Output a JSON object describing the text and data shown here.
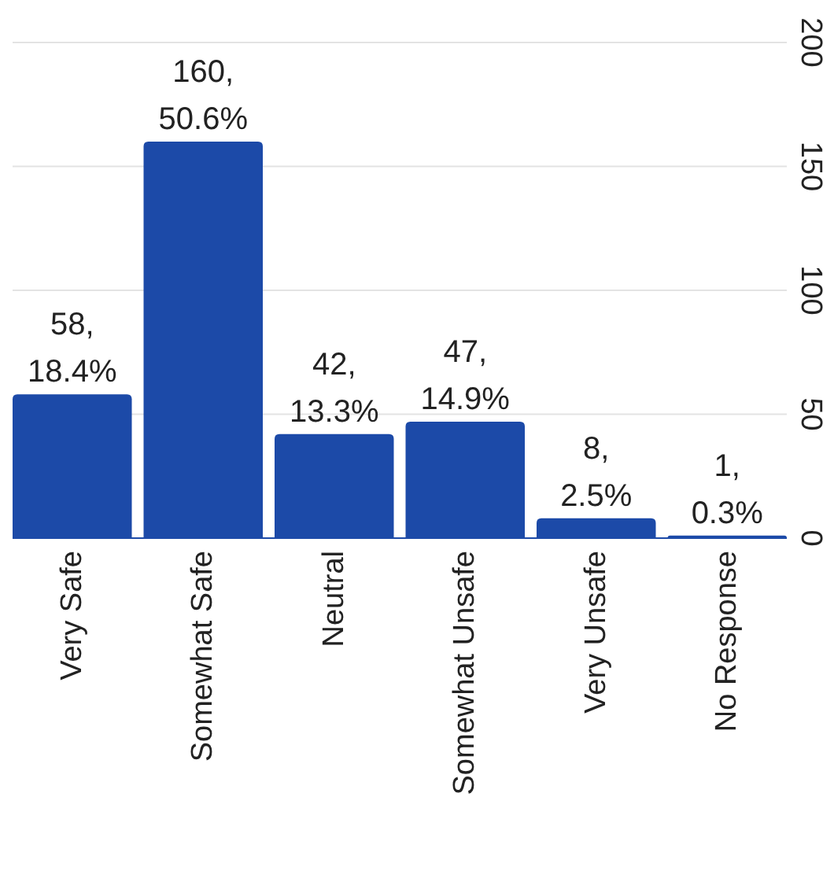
{
  "chart_data": {
    "type": "bar",
    "categories": [
      "Very Safe",
      "Somewhat Safe",
      "Neutral",
      "Somewhat Unsafe",
      "Very Unsafe",
      "No Response"
    ],
    "values": [
      58,
      160,
      42,
      47,
      8,
      1
    ],
    "color": "#1c4aa8",
    "value_labels": [
      "58, 18.4%",
      "160, 50.6%",
      "42, 13.3%",
      "47, 14.9%",
      "8, 2.5%",
      "1, 0.3%"
    ],
    "ylim": [
      0,
      200
    ],
    "yticks": [
      0,
      50,
      100,
      150,
      200
    ],
    "grid": "y"
  }
}
